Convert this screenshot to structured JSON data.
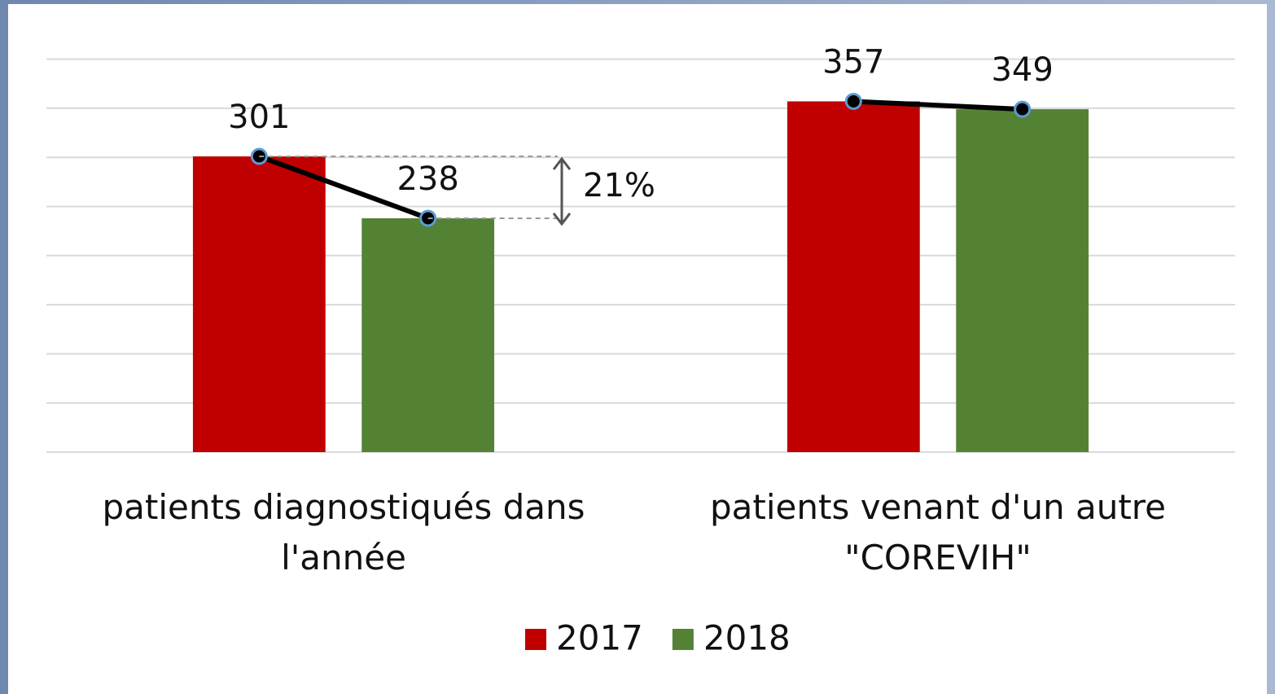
{
  "chart_data": {
    "type": "bar",
    "categories": [
      "patients diagnostiqués dans l'année",
      "patients venant d'un autre \"COREVIH\""
    ],
    "series": [
      {
        "name": "2017",
        "color": "#c00000",
        "values": [
          301,
          357
        ]
      },
      {
        "name": "2018",
        "color": "#548235",
        "values": [
          238,
          349
        ]
      }
    ],
    "ylim": [
      0,
      400
    ],
    "yticks": [
      0,
      50,
      100,
      150,
      200,
      250,
      300,
      350,
      400
    ],
    "grid": true,
    "annotation": "21%"
  }
}
